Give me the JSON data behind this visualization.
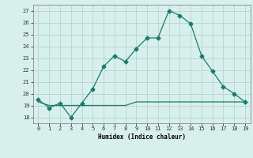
{
  "x": [
    0,
    1,
    2,
    3,
    4,
    5,
    6,
    7,
    8,
    9,
    10,
    11,
    12,
    13,
    14,
    15,
    16,
    17,
    18,
    19
  ],
  "y_line1": [
    19.5,
    18.8,
    19.2,
    18.0,
    19.2,
    20.4,
    22.3,
    23.2,
    22.7,
    23.8,
    24.7,
    24.7,
    27.0,
    26.6,
    25.9,
    23.2,
    21.9,
    20.6,
    20.0,
    19.3
  ],
  "y_line2": [
    19.3,
    19.0,
    19.0,
    19.0,
    19.0,
    19.0,
    19.0,
    19.0,
    19.0,
    19.3,
    19.3,
    19.3,
    19.3,
    19.3,
    19.3,
    19.3,
    19.3,
    19.3,
    19.3,
    19.3
  ],
  "line_color": "#1a7a6e",
  "bg_color": "#d8f0ec",
  "grid_color": "#b8d8d0",
  "ylabel_values": [
    18,
    19,
    20,
    21,
    22,
    23,
    24,
    25,
    26,
    27
  ],
  "xlabel": "Humidex (Indice chaleur)",
  "ylim": [
    17.5,
    27.5
  ],
  "xlim": [
    -0.5,
    19.5
  ]
}
